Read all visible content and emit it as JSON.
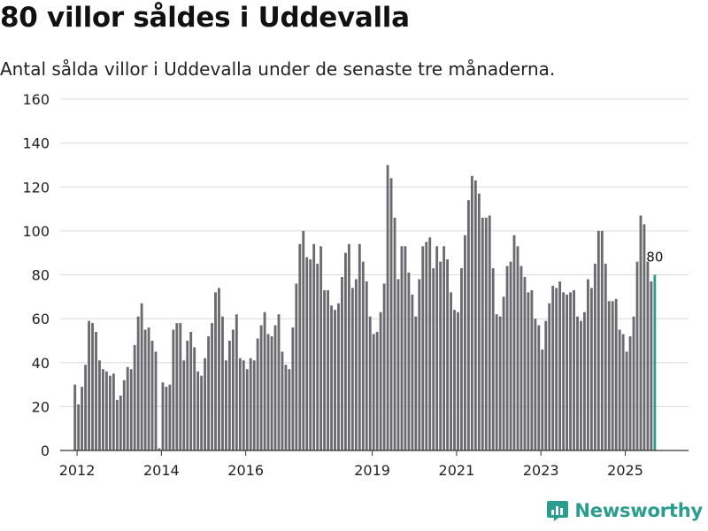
{
  "header": {
    "title": "80 villor såldes i Uddevalla",
    "subtitle": "Antal sålda villor i Uddevalla under de senaste tre månaderna."
  },
  "brand": {
    "name": "Newsworthy"
  },
  "colors": {
    "bar": "#6b6a6f",
    "highlight": "#2a9d8f",
    "grid": "#d9d9d9",
    "axis": "#333333",
    "brand": "#2a9d8f"
  },
  "chart_data": {
    "type": "bar",
    "title": "80 villor såldes i Uddevalla",
    "subtitle": "Antal sålda villor i Uddevalla under de senaste tre månaderna.",
    "xlabel": "",
    "ylabel": "",
    "ylim": [
      0,
      160
    ],
    "yticks": [
      0,
      20,
      40,
      60,
      80,
      100,
      120,
      140,
      160
    ],
    "xlim": [
      2011.6,
      2026.5
    ],
    "xticks": [
      2012,
      2014,
      2016,
      2019,
      2021,
      2023,
      2025
    ],
    "start": 2011.95,
    "step": 0.08333,
    "values": [
      30,
      21,
      29,
      39,
      59,
      58,
      54,
      41,
      37,
      36,
      34,
      35,
      23,
      25,
      32,
      38,
      37,
      48,
      61,
      67,
      55,
      56,
      50,
      45,
      1,
      31,
      29,
      30,
      55,
      58,
      58,
      41,
      50,
      54,
      47,
      36,
      34,
      42,
      52,
      58,
      72,
      74,
      61,
      41,
      50,
      55,
      62,
      42,
      41,
      37,
      42,
      41,
      51,
      57,
      63,
      53,
      52,
      57,
      62,
      45,
      39,
      37,
      56,
      76,
      94,
      100,
      88,
      87,
      94,
      85,
      93,
      73,
      73,
      66,
      64,
      67,
      79,
      90,
      94,
      74,
      78,
      94,
      86,
      77,
      61,
      53,
      54,
      63,
      76,
      130,
      124,
      106,
      78,
      93,
      93,
      81,
      71,
      61,
      78,
      93,
      95,
      97,
      83,
      93,
      86,
      93,
      87,
      72,
      64,
      63,
      83,
      98,
      114,
      125,
      123,
      117,
      106,
      106,
      107,
      83,
      62,
      61,
      70,
      84,
      86,
      98,
      93,
      84,
      79,
      72,
      73,
      60,
      57,
      46,
      59,
      67,
      75,
      74,
      77,
      72,
      71,
      72,
      73,
      61,
      59,
      63,
      78,
      74,
      85,
      100,
      100,
      85,
      68,
      68,
      69,
      55,
      53,
      45,
      52,
      61,
      86,
      107,
      103,
      86,
      77,
      80
    ],
    "highlight_label": "80"
  }
}
